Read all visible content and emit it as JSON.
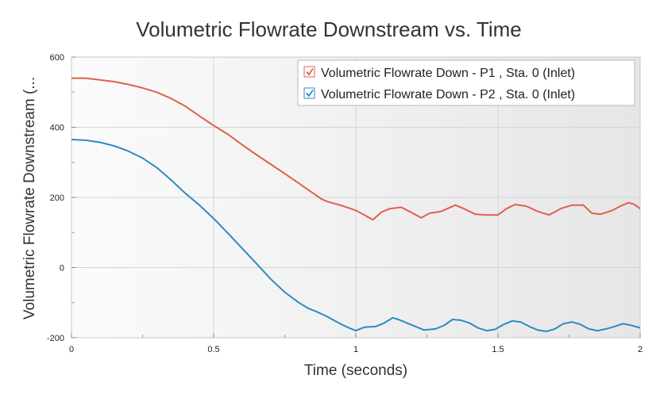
{
  "chart_data": {
    "type": "line",
    "title": "Volumetric Flowrate Downstream vs. Time",
    "xlabel": "Time (seconds)",
    "ylabel": "Volumetric Flowrate Downstream (...",
    "xlim": [
      0,
      2
    ],
    "ylim": [
      -200,
      600
    ],
    "x_ticks": [
      0,
      0.5,
      1,
      1.5,
      2
    ],
    "x_tick_labels": [
      "0",
      "0.5",
      "1",
      "1.5",
      "2"
    ],
    "y_ticks": [
      -200,
      0,
      200,
      400,
      600
    ],
    "y_tick_labels": [
      "-200",
      "0",
      "200",
      "400",
      "600"
    ],
    "grid": true,
    "legend_position": "top-right",
    "series": [
      {
        "name": "Volumetric Flowrate Down - P1 , Sta. 0 (Inlet)",
        "color": "#e0604c",
        "checked": true,
        "points": [
          [
            0,
            540
          ],
          [
            0.05,
            540
          ],
          [
            0.1,
            535
          ],
          [
            0.15,
            530
          ],
          [
            0.2,
            522
          ],
          [
            0.25,
            512
          ],
          [
            0.3,
            500
          ],
          [
            0.35,
            482
          ],
          [
            0.4,
            460
          ],
          [
            0.45,
            432
          ],
          [
            0.5,
            405
          ],
          [
            0.55,
            380
          ],
          [
            0.6,
            350
          ],
          [
            0.65,
            322
          ],
          [
            0.7,
            295
          ],
          [
            0.75,
            268
          ],
          [
            0.8,
            240
          ],
          [
            0.85,
            212
          ],
          [
            0.88,
            195
          ],
          [
            0.9,
            188
          ],
          [
            0.95,
            177
          ],
          [
            1.0,
            163
          ],
          [
            1.03,
            150
          ],
          [
            1.06,
            136
          ],
          [
            1.09,
            158
          ],
          [
            1.12,
            168
          ],
          [
            1.16,
            172
          ],
          [
            1.2,
            155
          ],
          [
            1.23,
            142
          ],
          [
            1.26,
            155
          ],
          [
            1.3,
            160
          ],
          [
            1.35,
            178
          ],
          [
            1.38,
            168
          ],
          [
            1.42,
            152
          ],
          [
            1.46,
            150
          ],
          [
            1.5,
            150
          ],
          [
            1.53,
            168
          ],
          [
            1.56,
            180
          ],
          [
            1.6,
            175
          ],
          [
            1.64,
            160
          ],
          [
            1.68,
            150
          ],
          [
            1.72,
            168
          ],
          [
            1.76,
            178
          ],
          [
            1.8,
            178
          ],
          [
            1.83,
            155
          ],
          [
            1.86,
            152
          ],
          [
            1.9,
            162
          ],
          [
            1.93,
            175
          ],
          [
            1.96,
            185
          ],
          [
            1.98,
            180
          ],
          [
            2.0,
            168
          ]
        ]
      },
      {
        "name": "Volumetric Flowrate Down - P2 , Sta. 0 (Inlet)",
        "color": "#2a8cc4",
        "checked": true,
        "points": [
          [
            0,
            365
          ],
          [
            0.05,
            363
          ],
          [
            0.1,
            357
          ],
          [
            0.15,
            347
          ],
          [
            0.2,
            332
          ],
          [
            0.25,
            312
          ],
          [
            0.3,
            285
          ],
          [
            0.35,
            250
          ],
          [
            0.4,
            212
          ],
          [
            0.45,
            178
          ],
          [
            0.5,
            140
          ],
          [
            0.55,
            98
          ],
          [
            0.6,
            55
          ],
          [
            0.65,
            12
          ],
          [
            0.7,
            -32
          ],
          [
            0.75,
            -70
          ],
          [
            0.8,
            -100
          ],
          [
            0.83,
            -115
          ],
          [
            0.86,
            -125
          ],
          [
            0.9,
            -140
          ],
          [
            0.94,
            -158
          ],
          [
            0.97,
            -170
          ],
          [
            1.0,
            -180
          ],
          [
            1.03,
            -170
          ],
          [
            1.07,
            -168
          ],
          [
            1.1,
            -158
          ],
          [
            1.13,
            -143
          ],
          [
            1.15,
            -148
          ],
          [
            1.18,
            -158
          ],
          [
            1.21,
            -168
          ],
          [
            1.24,
            -178
          ],
          [
            1.28,
            -175
          ],
          [
            1.31,
            -165
          ],
          [
            1.34,
            -148
          ],
          [
            1.37,
            -150
          ],
          [
            1.4,
            -158
          ],
          [
            1.43,
            -172
          ],
          [
            1.46,
            -180
          ],
          [
            1.49,
            -176
          ],
          [
            1.52,
            -162
          ],
          [
            1.55,
            -152
          ],
          [
            1.58,
            -155
          ],
          [
            1.61,
            -168
          ],
          [
            1.64,
            -178
          ],
          [
            1.67,
            -182
          ],
          [
            1.7,
            -175
          ],
          [
            1.73,
            -160
          ],
          [
            1.76,
            -155
          ],
          [
            1.79,
            -162
          ],
          [
            1.82,
            -175
          ],
          [
            1.85,
            -180
          ],
          [
            1.88,
            -175
          ],
          [
            1.91,
            -168
          ],
          [
            1.94,
            -160
          ],
          [
            1.97,
            -165
          ],
          [
            2.0,
            -172
          ]
        ]
      }
    ]
  }
}
